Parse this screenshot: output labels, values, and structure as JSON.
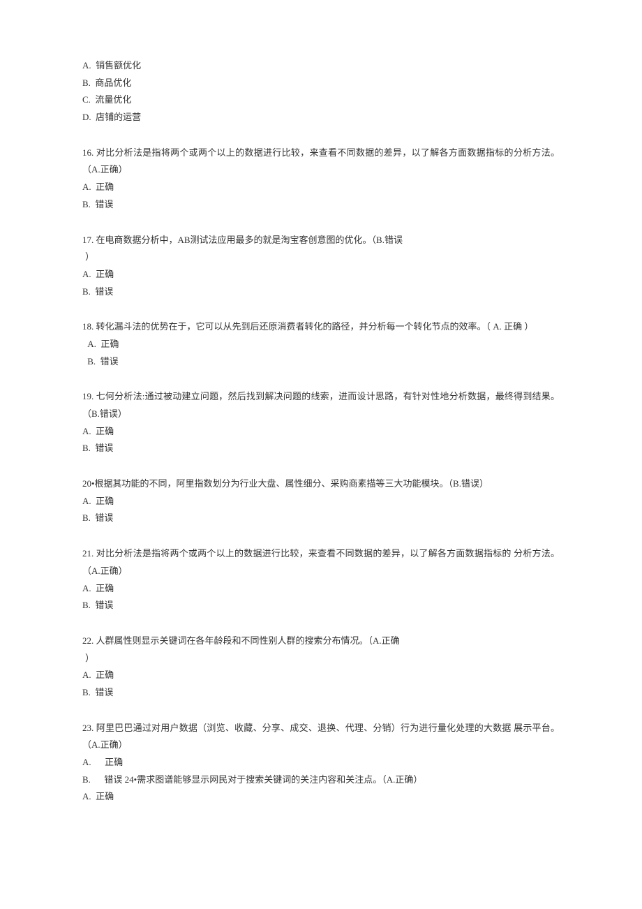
{
  "document": {
    "background_color": "#ffffff",
    "text_color": "#333333",
    "font_family": "SimSun",
    "font_size_pt": 10,
    "line_height": 1.9
  },
  "questions": [
    {
      "id": "q15-options",
      "options": [
        {
          "label": "A.",
          "text": "销售额优化"
        },
        {
          "label": "B.",
          "text": "商品优化"
        },
        {
          "label": "C.",
          "text": "流量优化"
        },
        {
          "label": "D.",
          "text": "店铺的运营"
        }
      ]
    },
    {
      "id": "q16",
      "prompt": "16.  对比分析法是指将两个或两个以上的数据进行比较，来查看不同数据的差异，以了解各方面数据指标的分析方法。（A.正确）",
      "options": [
        {
          "label": "A.",
          "text": "正确"
        },
        {
          "label": "B.",
          "text": "错误"
        }
      ]
    },
    {
      "id": "q17",
      "prompt": "17.  在电商数据分析中，AB测试法应用最多的就是淘宝客创意图的优化。（B.错误",
      "prompt_cont": "）",
      "options": [
        {
          "label": "A.",
          "text": "正确"
        },
        {
          "label": "B.",
          "text": "错误"
        }
      ]
    },
    {
      "id": "q18",
      "prompt": "18.  转化漏斗法的优势在于，它可以从先到后还原消费者转化的路径，并分析每一个转化节点的效率。（ A. 正确 ）",
      "options": [
        {
          "label": "A.",
          "text": "正确"
        },
        {
          "label": "B.",
          "text": "错误"
        }
      ]
    },
    {
      "id": "q19",
      "prompt": "19.  七何分析法:通过被动建立问题，然后找到解决问题的线索，进而设计思路，有针对性地分析数据，最终得到结果。（B.错误）",
      "options": [
        {
          "label": "A.",
          "text": "正确"
        },
        {
          "label": "B.",
          "text": "错误"
        }
      ]
    },
    {
      "id": "q20",
      "prompt": "20•根据其功能的不同，阿里指数划分为行业大盘、属性细分、采购商素描等三大功能模块。（B.错误）",
      "options": [
        {
          "label": "A.",
          "text": "正确"
        },
        {
          "label": "B.",
          "text": "错误"
        }
      ]
    },
    {
      "id": "q21",
      "prompt": "21.  对比分析法是指将两个或两个以上的数据进行比较，来查看不同数据的差异，以了解各方面数据指标的 分析方法。（A.正确）",
      "options": [
        {
          "label": "A.",
          "text": "正确"
        },
        {
          "label": "B.",
          "text": "错误"
        }
      ]
    },
    {
      "id": "q22",
      "prompt": "22.  人群属性则显示关键词在各年龄段和不同性别人群的搜索分布情况。（A.正确",
      "prompt_cont": "）",
      "options": [
        {
          "label": "A.",
          "text": "正确"
        },
        {
          "label": "B.",
          "text": "错误"
        }
      ]
    },
    {
      "id": "q23",
      "prompt": "23.  阿里巴巴通过对用户数据（浏览、收藏、分享、成交、退换、代理、分销）行为进行量化处理的大数据 展示平台。（A.正确）",
      "options": [
        {
          "label": "A.",
          "text": "正确"
        },
        {
          "label": "B.",
          "text": "错误 24•需求图谱能够显示网民对于搜索关键词的关注内容和关注点。（A.正确）"
        }
      ],
      "trailing_option": {
        "label": "A.",
        "text": "正确"
      }
    }
  ]
}
